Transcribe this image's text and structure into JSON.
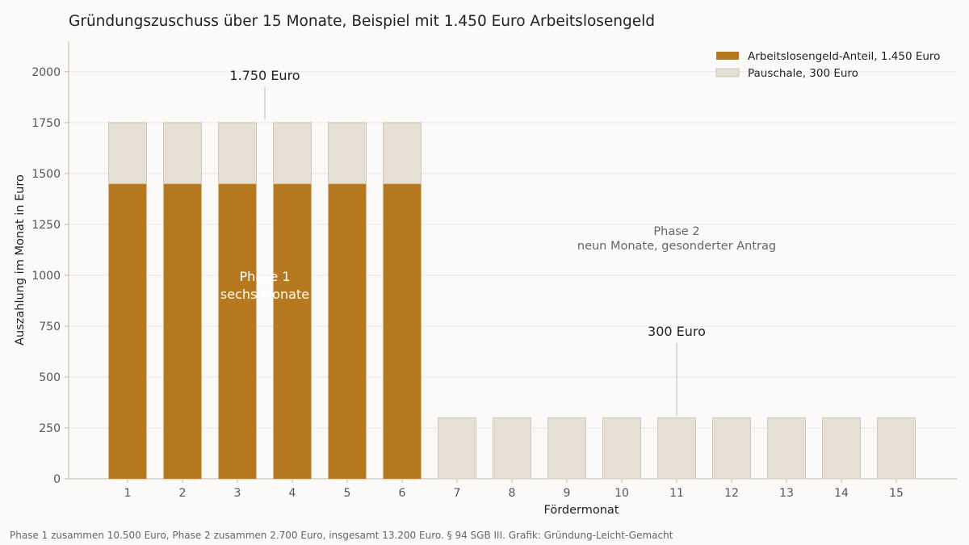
{
  "chart_data": {
    "type": "bar",
    "title": "Gründungszuschuss über 15 Monate, Beispiel mit 1.450 Euro Arbeitslosengeld",
    "xlabel": "Fördermonat",
    "ylabel": "Auszahlung im Monat in Euro",
    "categories": [
      "1",
      "2",
      "3",
      "4",
      "5",
      "6",
      "7",
      "8",
      "9",
      "10",
      "11",
      "12",
      "13",
      "14",
      "15"
    ],
    "ylim": [
      0,
      2150
    ],
    "yticks": [
      0,
      250,
      500,
      750,
      1000,
      1250,
      1500,
      1750,
      2000
    ],
    "stacked": true,
    "grid": true,
    "legend_position": "top-right",
    "series": [
      {
        "name": "Arbeitslosengeld-Anteil, 1.450 Euro",
        "color": "#b7791f",
        "values": [
          1450,
          1450,
          1450,
          1450,
          1450,
          1450,
          0,
          0,
          0,
          0,
          0,
          0,
          0,
          0,
          0
        ]
      },
      {
        "name": "Pauschale, 300 Euro",
        "color": "#e6dfd3",
        "values": [
          300,
          300,
          300,
          300,
          300,
          300,
          300,
          300,
          300,
          300,
          300,
          300,
          300,
          300,
          300
        ]
      }
    ],
    "annotations": [
      {
        "text": "1.750 Euro",
        "x": 3.5,
        "y": 1750
      },
      {
        "text": "300 Euro",
        "x": 11,
        "y": 300
      }
    ],
    "phase_labels": [
      {
        "lines": [
          "Phase 1",
          "sechs Monate"
        ],
        "x": 3.5,
        "y": 1000
      },
      {
        "lines": [
          "Phase 2",
          "neun Monate, gesonderter Antrag"
        ],
        "x": 11,
        "y": 1200
      }
    ]
  },
  "footer": "Phase 1 zusammen 10.500 Euro, Phase 2 zusammen 2.700 Euro, insgesamt 13.200 Euro. § 94 SGB III. Grafik: Gründung-Leicht-Gemacht"
}
